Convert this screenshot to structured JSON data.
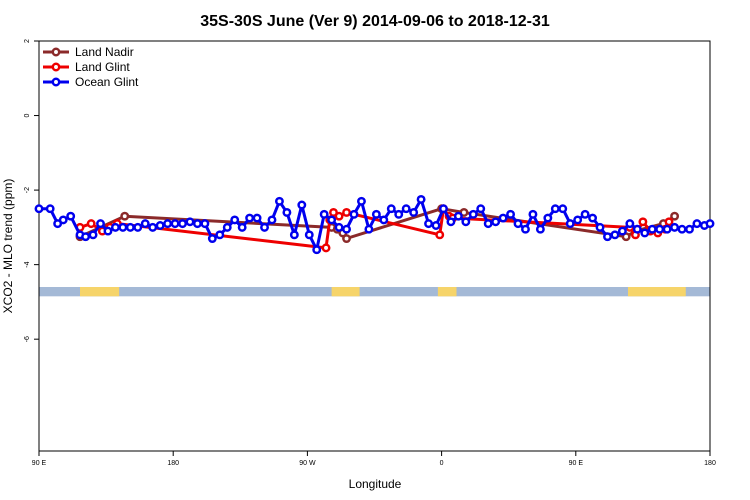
{
  "chart_data": {
    "type": "line",
    "title": "35S-30S June (Ver 9)   2014-09-06 to 2018-12-31",
    "xlabel": "Longitude",
    "ylabel": "XCO2 - MLO trend (ppm)",
    "xlim": [
      90,
      450
    ],
    "ylim": [
      -9,
      2
    ],
    "x_ticks": [
      {
        "value": 90,
        "label": "90 E"
      },
      {
        "value": 162,
        "label": "180"
      },
      {
        "value": 234,
        "label": "90 W"
      },
      {
        "value": 306,
        "label": "0"
      },
      {
        "value": 378,
        "label": "90 E"
      },
      {
        "value": 450,
        "label": "180"
      }
    ],
    "y_ticks": [
      {
        "value": 2,
        "label": "2"
      },
      {
        "value": 0,
        "label": "0"
      },
      {
        "value": -2,
        "label": "-2"
      },
      {
        "value": -4,
        "label": "-4"
      },
      {
        "value": -6,
        "label": "-6"
      }
    ],
    "legend_position": "top-left",
    "series": [
      {
        "name": "Land Nadir",
        "color": "#8b2a2a",
        "points": [
          [
            112,
            -3.25
          ],
          [
            136,
            -2.7
          ],
          [
            247,
            -3.0
          ],
          [
            250,
            -3.05
          ],
          [
            253,
            -3.15
          ],
          [
            255,
            -3.3
          ],
          [
            306,
            -2.5
          ],
          [
            318,
            -2.6
          ],
          [
            405,
            -3.25
          ],
          [
            410,
            -3.1
          ],
          [
            425,
            -2.9
          ],
          [
            431,
            -2.7
          ]
        ]
      },
      {
        "name": "Land Glint",
        "color": "#ee0000",
        "points": [
          [
            112,
            -3.0
          ],
          [
            118,
            -2.9
          ],
          [
            124,
            -3.1
          ],
          [
            128,
            -3.0
          ],
          [
            132,
            -2.9
          ],
          [
            244,
            -3.55
          ],
          [
            246,
            -2.8
          ],
          [
            248,
            -2.6
          ],
          [
            251,
            -2.7
          ],
          [
            255,
            -2.6
          ],
          [
            305,
            -3.2
          ],
          [
            307,
            -2.5
          ],
          [
            310,
            -2.7
          ],
          [
            312,
            -2.75
          ],
          [
            407,
            -3.0
          ],
          [
            410,
            -3.2
          ],
          [
            414,
            -2.85
          ],
          [
            418,
            -3.1
          ],
          [
            422,
            -3.15
          ],
          [
            426,
            -3.05
          ],
          [
            428,
            -2.85
          ]
        ]
      },
      {
        "name": "Ocean Glint",
        "color": "#0000ee",
        "points": [
          [
            90,
            -2.5
          ],
          [
            96,
            -2.5
          ],
          [
            100,
            -2.9
          ],
          [
            103,
            -2.8
          ],
          [
            107,
            -2.7
          ],
          [
            112,
            -3.2
          ],
          [
            115,
            -3.25
          ],
          [
            119,
            -3.2
          ],
          [
            123,
            -2.9
          ],
          [
            127,
            -3.1
          ],
          [
            131,
            -3.0
          ],
          [
            135,
            -3.0
          ],
          [
            139,
            -3.0
          ],
          [
            143,
            -3.0
          ],
          [
            147,
            -2.9
          ],
          [
            151,
            -3.0
          ],
          [
            155,
            -2.95
          ],
          [
            159,
            -2.9
          ],
          [
            163,
            -2.9
          ],
          [
            167,
            -2.9
          ],
          [
            171,
            -2.85
          ],
          [
            175,
            -2.9
          ],
          [
            179,
            -2.9
          ],
          [
            183,
            -3.3
          ],
          [
            187,
            -3.2
          ],
          [
            191,
            -3.0
          ],
          [
            195,
            -2.8
          ],
          [
            199,
            -3.0
          ],
          [
            203,
            -2.75
          ],
          [
            207,
            -2.75
          ],
          [
            211,
            -3.0
          ],
          [
            215,
            -2.8
          ],
          [
            219,
            -2.3
          ],
          [
            223,
            -2.6
          ],
          [
            227,
            -3.2
          ],
          [
            231,
            -2.4
          ],
          [
            235,
            -3.2
          ],
          [
            239,
            -3.6
          ],
          [
            243,
            -2.65
          ],
          [
            247,
            -2.8
          ],
          [
            251,
            -3.0
          ],
          [
            255,
            -3.05
          ],
          [
            259,
            -2.65
          ],
          [
            263,
            -2.3
          ],
          [
            267,
            -3.05
          ],
          [
            271,
            -2.65
          ],
          [
            275,
            -2.8
          ],
          [
            279,
            -2.5
          ],
          [
            283,
            -2.65
          ],
          [
            287,
            -2.5
          ],
          [
            291,
            -2.6
          ],
          [
            295,
            -2.25
          ],
          [
            299,
            -2.9
          ],
          [
            303,
            -2.95
          ],
          [
            307,
            -2.5
          ],
          [
            311,
            -2.85
          ],
          [
            315,
            -2.7
          ],
          [
            319,
            -2.85
          ],
          [
            323,
            -2.65
          ],
          [
            327,
            -2.5
          ],
          [
            331,
            -2.9
          ],
          [
            335,
            -2.85
          ],
          [
            339,
            -2.75
          ],
          [
            343,
            -2.65
          ],
          [
            347,
            -2.9
          ],
          [
            351,
            -3.05
          ],
          [
            355,
            -2.65
          ],
          [
            359,
            -3.05
          ],
          [
            363,
            -2.75
          ],
          [
            367,
            -2.5
          ],
          [
            371,
            -2.5
          ],
          [
            375,
            -2.9
          ],
          [
            379,
            -2.8
          ],
          [
            383,
            -2.65
          ],
          [
            387,
            -2.75
          ],
          [
            391,
            -3.0
          ],
          [
            395,
            -3.25
          ],
          [
            399,
            -3.2
          ],
          [
            403,
            -3.1
          ],
          [
            407,
            -2.9
          ],
          [
            411,
            -3.05
          ],
          [
            415,
            -3.15
          ],
          [
            419,
            -3.05
          ],
          [
            423,
            -3.05
          ],
          [
            427,
            -3.05
          ],
          [
            431,
            -3.0
          ],
          [
            435,
            -3.05
          ],
          [
            439,
            -3.05
          ],
          [
            443,
            -2.9
          ],
          [
            447,
            -2.95
          ],
          [
            450,
            -2.9
          ]
        ]
      }
    ],
    "map_strip": {
      "y_range": [
        -4.85,
        -4.6
      ],
      "ocean_color": "#a4b9d6",
      "land_color": "#f6d46a",
      "land_segments": [
        [
          112,
          133
        ],
        [
          247,
          262
        ],
        [
          304,
          314
        ],
        [
          406,
          437
        ]
      ]
    }
  }
}
